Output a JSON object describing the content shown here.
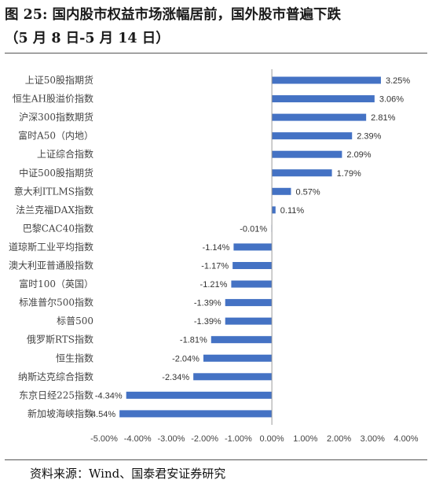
{
  "title_line1": "图 25: 国内股市权益市场涨幅居前，国外股市普遍下跌",
  "title_line2": "（5 月 8 日-5 月 14 日）",
  "source": "资料来源：Wind、国泰君安证券研究",
  "chart_data": {
    "type": "bar",
    "orientation": "horizontal",
    "categories": [
      "上证50股指期货",
      "恒生AH股溢价指数",
      "沪深300指数期货",
      "富时A50（内地）",
      "上证综合指数",
      "中证500股指期货",
      "意大利ITLMS指数",
      "法兰克福DAX指数",
      "巴黎CAC40指数",
      "道琼斯工业平均指数",
      "澳大利亚普通股指数",
      "富时100（英国）",
      "标准普尔500指数",
      "标普500",
      "俄罗斯RTS指数",
      "恒生指数",
      "纳斯达克综合指数",
      "东京日经225指数",
      "新加坡海峡指数"
    ],
    "values": [
      3.25,
      3.06,
      2.81,
      2.39,
      2.09,
      1.79,
      0.57,
      0.11,
      -0.01,
      -1.14,
      -1.17,
      -1.21,
      -1.39,
      -1.39,
      -1.81,
      -2.04,
      -2.34,
      -4.34,
      -4.54
    ],
    "value_labels": [
      "3.25%",
      "3.06%",
      "2.81%",
      "2.39%",
      "2.09%",
      "1.79%",
      "0.57%",
      "0.11%",
      "-0.01%",
      "-1.14%",
      "-1.17%",
      "-1.21%",
      "-1.39%",
      "-1.39%",
      "-1.81%",
      "-2.04%",
      "-2.34%",
      "-4.34%",
      "-4.54%"
    ],
    "x_ticks": [
      "-5.00%",
      "-4.00%",
      "-3.00%",
      "-2.00%",
      "-1.00%",
      "0.00%",
      "1.00%",
      "2.00%",
      "3.00%",
      "4.00%"
    ],
    "xlim": [
      -5,
      4
    ],
    "bar_color": "#4472C4",
    "grid": false,
    "legend": "none"
  }
}
